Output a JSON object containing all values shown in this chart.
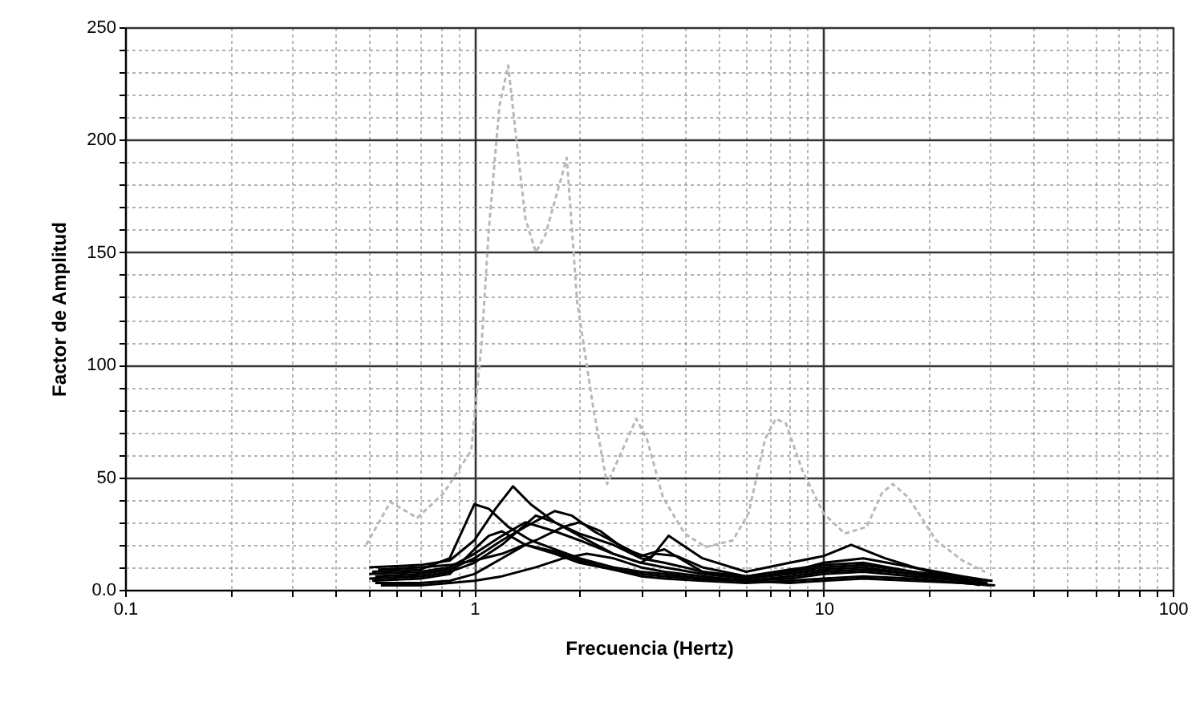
{
  "chart_data": {
    "type": "line",
    "xlabel": "Frecuencia (Hertz)",
    "ylabel": "Factor de Amplitud",
    "log": "x",
    "grid": true,
    "xlim": [
      0.1,
      100
    ],
    "ylim": [
      0,
      250
    ],
    "xticks": [
      0.1,
      {
        "value": 0.2,
        "label": null
      },
      {
        "value": 0.3,
        "label": null
      },
      {
        "value": 0.4,
        "label": null
      },
      {
        "value": 0.5,
        "label": null
      },
      {
        "value": 0.6,
        "label": null
      },
      {
        "value": 0.7,
        "label": null
      },
      {
        "value": 0.8,
        "label": null
      },
      {
        "value": 0.9,
        "label": null
      },
      1,
      {
        "value": 2,
        "label": null
      },
      {
        "value": 3,
        "label": null
      },
      {
        "value": 4,
        "label": null
      },
      {
        "value": 5,
        "label": null
      },
      {
        "value": 6,
        "label": null
      },
      {
        "value": 7,
        "label": null
      },
      {
        "value": 8,
        "label": null
      },
      {
        "value": 9,
        "label": null
      },
      10,
      {
        "value": 20,
        "label": null
      },
      {
        "value": 30,
        "label": null
      },
      {
        "value": 40,
        "label": null
      },
      {
        "value": 50,
        "label": null
      },
      {
        "value": 60,
        "label": null
      },
      {
        "value": 70,
        "label": null
      },
      {
        "value": 80,
        "label": null
      },
      {
        "value": 90,
        "label": null
      },
      100
    ],
    "yticks": [
      {
        "value": 0,
        "label": "0.0"
      },
      {
        "value": 10,
        "label": null
      },
      {
        "value": 20,
        "label": null
      },
      {
        "value": 30,
        "label": null
      },
      {
        "value": 40,
        "label": null
      },
      50,
      {
        "value": 60,
        "label": null
      },
      {
        "value": 70,
        "label": null
      },
      {
        "value": 80,
        "label": null
      },
      {
        "value": 90,
        "label": null
      },
      100,
      {
        "value": 110,
        "label": null
      },
      {
        "value": 120,
        "label": null
      },
      {
        "value": 130,
        "label": null
      },
      {
        "value": 140,
        "label": null
      },
      150,
      {
        "value": 160,
        "label": null
      },
      {
        "value": 170,
        "label": null
      },
      {
        "value": 180,
        "label": null
      },
      {
        "value": 190,
        "label": null
      },
      200,
      {
        "value": 210,
        "label": null
      },
      {
        "value": 220,
        "label": null
      },
      {
        "value": 230,
        "label": null
      },
      {
        "value": 240,
        "label": null
      },
      250
    ],
    "series": [
      {
        "color": "#b8b8b8",
        "line_style": "dashed",
        "x": [
          0.49,
          0.575,
          0.686,
          0.818,
          0.98,
          1.05,
          1.1,
          1.18,
          1.25,
          1.32,
          1.4,
          1.5,
          1.6,
          1.84,
          1.97,
          2.19,
          2.4,
          2.91,
          3.12,
          3.47,
          4.0,
          4.6,
          5.5,
          6.1,
          6.8,
          7.3,
          7.8,
          8.7,
          10,
          11.5,
          13.3,
          14.7,
          15.8,
          17.5,
          21,
          25,
          29
        ],
        "values": [
          20,
          39,
          32,
          43,
          62,
          110,
          160,
          215,
          233,
          200,
          165,
          150,
          158,
          192,
          128,
          81,
          47,
          76,
          67,
          41,
          25,
          19,
          22,
          34,
          67,
          76,
          74,
          53,
          34,
          25,
          28,
          43,
          47,
          41,
          22,
          13,
          8
        ]
      },
      {
        "color": "#000000",
        "line_style": "solid",
        "x": [
          0.5,
          0.7,
          0.85,
          1,
          1.15,
          1.29,
          1.45,
          1.7,
          2,
          2.5,
          3,
          3.5,
          4.5,
          6,
          8,
          10,
          13,
          18,
          25,
          30
        ],
        "values": [
          10,
          11,
          13,
          22,
          36,
          46,
          38,
          30,
          24,
          16,
          12,
          10,
          7,
          5,
          8,
          12,
          14,
          10,
          6,
          4
        ]
      },
      {
        "color": "#000000",
        "line_style": "solid",
        "x": [
          0.51,
          0.7,
          0.85,
          1,
          1.1,
          1.25,
          1.45,
          1.7,
          2,
          2.5,
          3,
          3.5,
          4.5,
          6,
          8,
          10,
          13,
          18,
          25,
          29.5
        ],
        "values": [
          8,
          9,
          14,
          38,
          36,
          28,
          22,
          18,
          14,
          10,
          8,
          7,
          5,
          4,
          6,
          8,
          9,
          7,
          5,
          3
        ]
      },
      {
        "color": "#000000",
        "line_style": "solid",
        "x": [
          0.52,
          0.7,
          0.85,
          1,
          1.2,
          1.4,
          1.7,
          1.9,
          2.2,
          2.6,
          3,
          3.5,
          4.5,
          6,
          8,
          10,
          13,
          18,
          25,
          29
        ],
        "values": [
          6,
          7,
          9,
          14,
          22,
          28,
          35,
          33,
          26,
          20,
          15,
          18,
          8,
          6,
          9,
          11,
          12,
          8,
          5,
          3
        ]
      },
      {
        "color": "#000000",
        "line_style": "solid",
        "x": [
          0.5,
          0.7,
          0.85,
          1,
          1.2,
          1.5,
          1.7,
          2,
          2.5,
          3,
          3.5,
          4,
          4.5,
          6,
          8,
          10,
          13,
          18,
          25,
          28.5
        ],
        "values": [
          5,
          6,
          8,
          12,
          20,
          33,
          30,
          25,
          20,
          14,
          12,
          10,
          8,
          5,
          7,
          9,
          10,
          7,
          4,
          3
        ]
      },
      {
        "color": "#000000",
        "line_style": "solid",
        "x": [
          0.53,
          0.7,
          0.85,
          1,
          1.2,
          1.5,
          1.8,
          2,
          2.3,
          2.7,
          3.2,
          3.6,
          4.5,
          6,
          8,
          10,
          12,
          15,
          20,
          25,
          30.5
        ],
        "values": [
          9,
          10,
          11,
          13,
          16,
          22,
          28,
          30,
          26,
          18,
          14,
          24,
          14,
          8,
          12,
          15,
          20,
          14,
          8,
          5,
          4
        ]
      },
      {
        "color": "#000000",
        "line_style": "solid",
        "x": [
          0.51,
          0.7,
          0.85,
          1,
          1.1,
          1.2,
          1.4,
          1.7,
          2,
          2.5,
          3,
          3.5,
          4.5,
          6,
          8,
          10,
          13,
          18,
          25,
          28
        ],
        "values": [
          4,
          5,
          7,
          18,
          24,
          26,
          20,
          16,
          12,
          9,
          7,
          6,
          5,
          4,
          5,
          7,
          8,
          6,
          4,
          2
        ]
      },
      {
        "color": "#000000",
        "line_style": "solid",
        "x": [
          0.52,
          0.7,
          0.85,
          1,
          1.2,
          1.4,
          1.7,
          2,
          2.5,
          3,
          3.5,
          4.5,
          6,
          8,
          10,
          13,
          18,
          25,
          31
        ],
        "values": [
          3,
          3,
          4,
          7,
          14,
          20,
          17,
          13,
          9,
          6,
          5,
          4,
          3,
          4,
          5,
          6,
          5,
          3,
          2
        ]
      },
      {
        "color": "#000000",
        "line_style": "solid",
        "x": [
          0.5,
          0.7,
          0.85,
          1,
          1.2,
          1.4,
          1.7,
          2,
          2.5,
          3,
          3.3,
          3.8,
          4.5,
          6,
          8,
          10,
          13,
          18,
          25,
          27.5
        ],
        "values": [
          7,
          8,
          10,
          16,
          24,
          30,
          26,
          22,
          16,
          12,
          16,
          15,
          10,
          6,
          8,
          10,
          11,
          8,
          5,
          3
        ]
      },
      {
        "color": "#000000",
        "line_style": "solid",
        "x": [
          0.54,
          0.7,
          0.85,
          1,
          1.2,
          1.5,
          1.8,
          2.1,
          2.5,
          3,
          3.5,
          4.5,
          6,
          8,
          10,
          13,
          18,
          25,
          30
        ],
        "values": [
          2,
          2,
          3,
          4,
          6,
          10,
          14,
          16,
          14,
          10,
          8,
          6,
          4,
          3,
          4,
          5,
          4,
          3,
          2
        ]
      }
    ]
  }
}
